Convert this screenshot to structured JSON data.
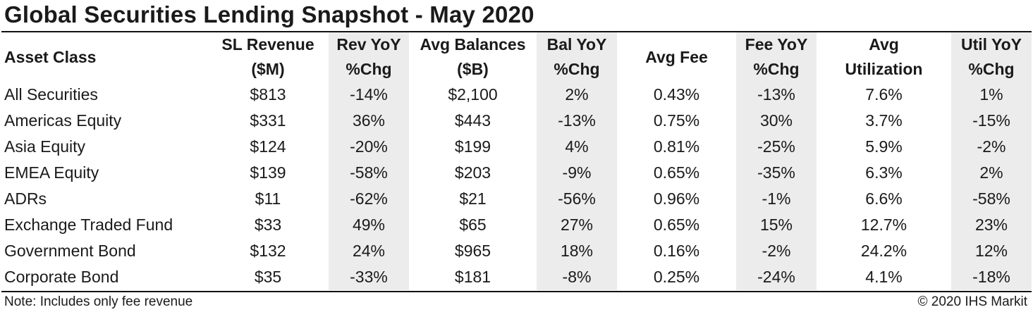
{
  "title": "Global Securities Lending Snapshot - May 2020",
  "note": "Note: Includes only fee revenue",
  "copyright": "© 2020 IHS Markit",
  "colors": {
    "shade": "#ececec",
    "rule": "#111111"
  },
  "chart_data": {
    "type": "table",
    "title": "Global Securities Lending Snapshot - May 2020",
    "columns": [
      {
        "line1": "Asset Class",
        "line2": ""
      },
      {
        "line1": "SL Revenue",
        "line2": "($M)"
      },
      {
        "line1": "Rev YoY",
        "line2": "%Chg"
      },
      {
        "line1": "Avg Balances",
        "line2": "($B)"
      },
      {
        "line1": "Bal YoY",
        "line2": "%Chg"
      },
      {
        "line1": "Avg Fee",
        "line2": ""
      },
      {
        "line1": "Fee YoY",
        "line2": "%Chg"
      },
      {
        "line1": "Avg",
        "line2": "Utilization"
      },
      {
        "line1": "Util YoY",
        "line2": "%Chg"
      }
    ],
    "rows": [
      [
        "All Securities",
        "$813",
        "-14%",
        "$2,100",
        "2%",
        "0.43%",
        "-13%",
        "7.6%",
        "1%"
      ],
      [
        "Americas Equity",
        "$331",
        "36%",
        "$443",
        "-13%",
        "0.75%",
        "30%",
        "3.7%",
        "-15%"
      ],
      [
        "Asia Equity",
        "$124",
        "-20%",
        "$199",
        "4%",
        "0.81%",
        "-25%",
        "5.9%",
        "-2%"
      ],
      [
        "EMEA Equity",
        "$139",
        "-58%",
        "$203",
        "-9%",
        "0.65%",
        "-35%",
        "6.3%",
        "2%"
      ],
      [
        "ADRs",
        "$11",
        "-62%",
        "$21",
        "-56%",
        "0.96%",
        "-1%",
        "6.6%",
        "-58%"
      ],
      [
        "Exchange Traded Fund",
        "$33",
        "49%",
        "$65",
        "27%",
        "0.65%",
        "15%",
        "12.7%",
        "23%"
      ],
      [
        "Government Bond",
        "$132",
        "24%",
        "$965",
        "18%",
        "0.16%",
        "-2%",
        "24.2%",
        "12%"
      ],
      [
        "Corporate Bond",
        "$35",
        "-33%",
        "$181",
        "-8%",
        "0.25%",
        "-24%",
        "4.1%",
        "-18%"
      ]
    ]
  }
}
